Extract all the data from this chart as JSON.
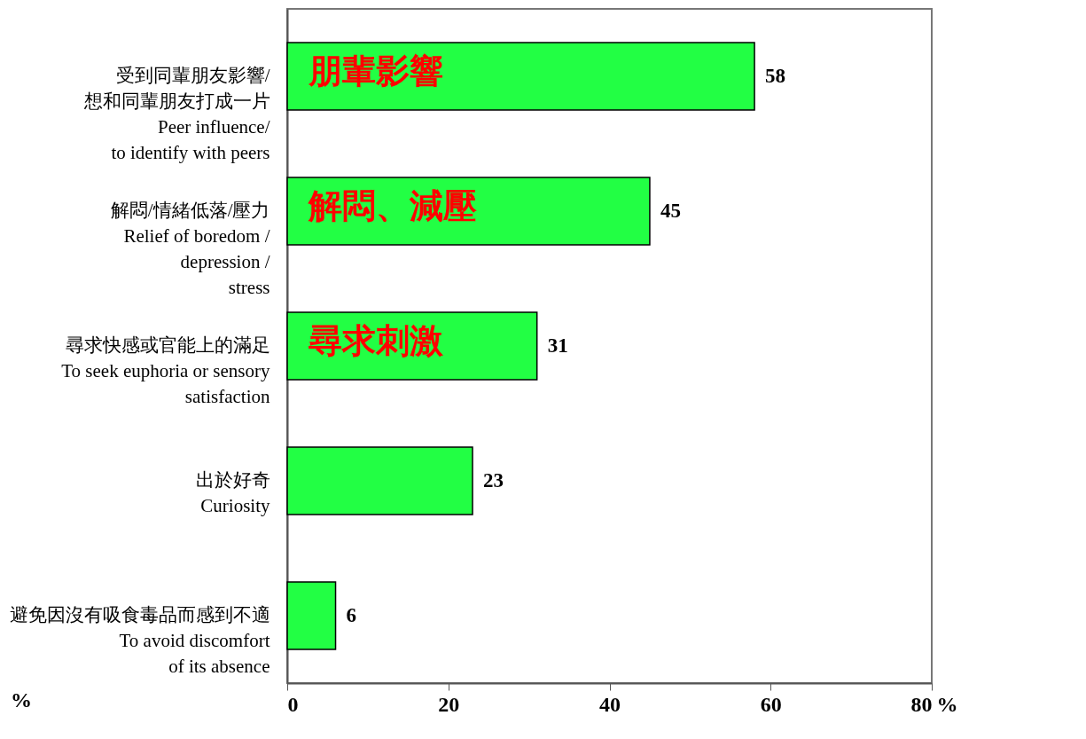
{
  "chart_data": {
    "type": "bar",
    "orientation": "horizontal",
    "categories": [
      "受到同輩朋友影響/想和同輩朋友打成一片\nPeer influence/\nto identify with peers",
      "解悶/情緒低落/壓力\nRelief of boredom /\ndepression / stress",
      "尋求快感或官能上的滿足\nTo seek euphoria or sensory\nsatisfaction",
      "出於好奇\nCuriosity",
      "避免因沒有吸食毒品而感到不適\nTo avoid discomfort\nof its absence"
    ],
    "values": [
      58,
      45,
      31,
      23,
      6
    ],
    "color": "#22ff44",
    "xlim": [
      0,
      80
    ],
    "xticks": [
      0,
      20,
      40,
      60,
      80
    ],
    "xlabel": "%",
    "data_labels": true,
    "grid": false,
    "annotations": [
      "朋輩影響",
      "解悶、減壓",
      "尋求刺激",
      "%"
    ]
  }
}
